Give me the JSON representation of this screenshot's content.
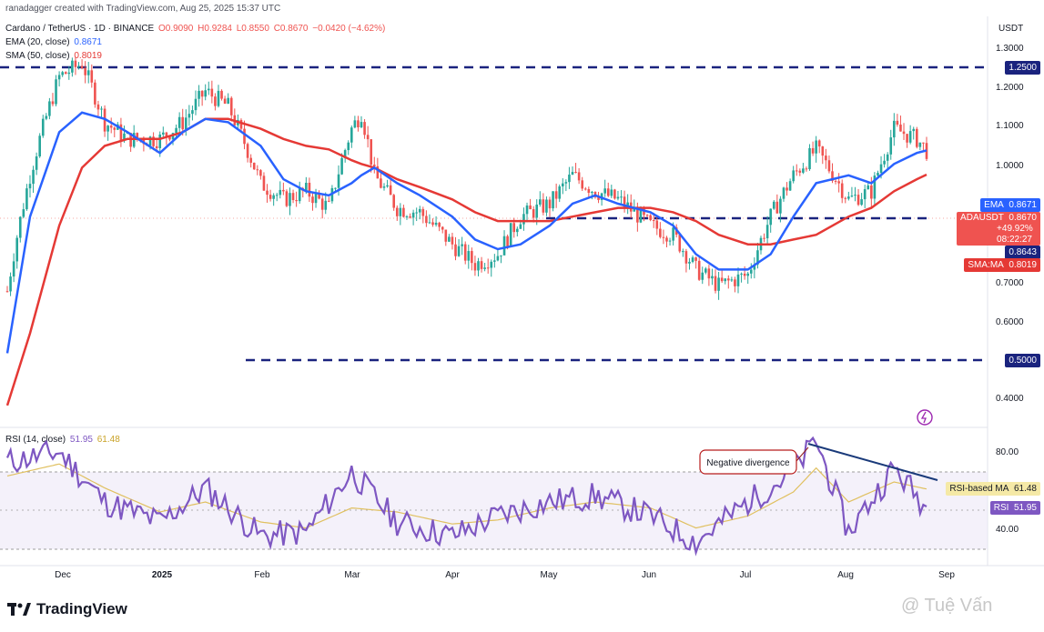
{
  "header": {
    "credit": "ranadagger created with TradingView.com, Aug 25, 2025 15:37 UTC",
    "symbol": "Cardano / TetherUS · 1D · BINANCE",
    "open": "O0.9090",
    "high": "H0.9284",
    "low": "L0.8550",
    "close": "C0.8670",
    "change": "−0.0420 (−4.62%)",
    "ema_label": "EMA (20, close)",
    "ema_value": "0.8671",
    "sma_label": "SMA (50, close)",
    "sma_value": "0.8019",
    "rsi_label": "RSI (14, close)",
    "rsi_value": "51.95",
    "rsi_ma_value": "61.48"
  },
  "axis": {
    "unit": "USDT",
    "price_ticks": [
      "1.3000",
      "1.2000",
      "1.1000",
      "1.0000",
      "0.7000",
      "0.6000",
      "0.4000"
    ],
    "rsi_ticks": [
      "80.00",
      "40.00"
    ],
    "time_ticks": [
      "Dec",
      "2025",
      "Feb",
      "Mar",
      "Apr",
      "May",
      "Jun",
      "Jul",
      "Aug",
      "Sep"
    ]
  },
  "tags": {
    "level_125": "1.2500",
    "ema": "EMA",
    "ema_val": "0.8671",
    "symbol": "ADAUSDT",
    "symbol_val": "0.8670",
    "pct": "+49.92%",
    "countdown": "08:22:27",
    "level_0864": "0.8643",
    "sma": "SMA:MA",
    "sma_val": "0.8019",
    "level_050": "0.5000",
    "rsi_ma": "RSI-based MA",
    "rsi_ma_val": "61.48",
    "rsi": "RSI",
    "rsi_val": "51.95"
  },
  "annotation": "Negative divergence",
  "footer": {
    "logo": "TradingView",
    "watermark": "@ Tuệ Vấn"
  },
  "colors": {
    "up": "#26a69a",
    "down": "#ef5350",
    "ema": "#2962ff",
    "sma": "#e53935",
    "rsi": "#7e57c2",
    "rsi_ma": "#e0c060",
    "level": "#1a237e"
  },
  "chart_data": [
    {
      "type": "candlestick",
      "title": "Cardano / TetherUS · 1D · BINANCE",
      "ylabel": "USDT",
      "y_scale": "log",
      "ylim": [
        0.37,
        1.33
      ],
      "x": [
        "2024-11-15",
        "2024-11-22",
        "2024-12-01",
        "2024-12-08",
        "2024-12-15",
        "2024-12-22",
        "2025-01-01",
        "2025-01-08",
        "2025-01-15",
        "2025-01-22",
        "2025-02-01",
        "2025-02-08",
        "2025-02-15",
        "2025-02-22",
        "2025-03-01",
        "2025-03-04",
        "2025-03-08",
        "2025-03-15",
        "2025-03-22",
        "2025-04-01",
        "2025-04-08",
        "2025-04-15",
        "2025-04-22",
        "2025-05-01",
        "2025-05-08",
        "2025-05-15",
        "2025-05-22",
        "2025-06-01",
        "2025-06-08",
        "2025-06-15",
        "2025-06-22",
        "2025-07-01",
        "2025-07-08",
        "2025-07-15",
        "2025-07-22",
        "2025-08-01",
        "2025-08-08",
        "2025-08-15",
        "2025-08-22",
        "2025-08-25"
      ],
      "series": [
        {
          "name": "ADAUSDT",
          "values": [
            0.55,
            0.8,
            1.1,
            1.15,
            0.95,
            0.9,
            0.9,
            0.95,
            1.05,
            1.0,
            0.78,
            0.74,
            0.76,
            0.72,
            0.93,
            0.98,
            0.8,
            0.72,
            0.71,
            0.64,
            0.6,
            0.62,
            0.7,
            0.73,
            0.8,
            0.76,
            0.74,
            0.68,
            0.66,
            0.59,
            0.56,
            0.58,
            0.7,
            0.8,
            0.87,
            0.74,
            0.76,
            0.93,
            0.9,
            0.867
          ]
        },
        {
          "name": "EMA (20, close)",
          "values": [
            0.45,
            0.7,
            0.92,
            0.98,
            0.96,
            0.92,
            0.86,
            0.92,
            0.96,
            0.95,
            0.88,
            0.79,
            0.76,
            0.75,
            0.78,
            0.8,
            0.82,
            0.78,
            0.75,
            0.7,
            0.65,
            0.63,
            0.64,
            0.68,
            0.73,
            0.75,
            0.73,
            0.71,
            0.68,
            0.62,
            0.59,
            0.59,
            0.62,
            0.7,
            0.78,
            0.8,
            0.78,
            0.83,
            0.86,
            0.8671
          ]
        },
        {
          "name": "SMA (50, close)",
          "values": [
            0.38,
            0.48,
            0.68,
            0.82,
            0.88,
            0.9,
            0.9,
            0.92,
            0.96,
            0.96,
            0.93,
            0.9,
            0.88,
            0.87,
            0.84,
            0.83,
            0.82,
            0.79,
            0.77,
            0.74,
            0.71,
            0.69,
            0.69,
            0.69,
            0.7,
            0.71,
            0.72,
            0.72,
            0.71,
            0.69,
            0.66,
            0.64,
            0.64,
            0.65,
            0.66,
            0.7,
            0.72,
            0.76,
            0.79,
            0.8019
          ]
        }
      ],
      "levels": [
        1.25,
        0.8643,
        0.5
      ]
    },
    {
      "type": "line",
      "title": "RSI (14, close)",
      "ylim": [
        25,
        90
      ],
      "x": [
        "2024-11-15",
        "2024-12-01",
        "2024-12-15",
        "2025-01-01",
        "2025-01-15",
        "2025-02-01",
        "2025-02-15",
        "2025-03-01",
        "2025-03-15",
        "2025-04-01",
        "2025-04-15",
        "2025-05-01",
        "2025-05-15",
        "2025-06-01",
        "2025-06-15",
        "2025-07-01",
        "2025-07-15",
        "2025-07-22",
        "2025-08-01",
        "2025-08-15",
        "2025-08-25"
      ],
      "series": [
        {
          "name": "RSI",
          "values": [
            75,
            80,
            55,
            45,
            62,
            38,
            40,
            70,
            45,
            38,
            48,
            55,
            58,
            48,
            35,
            55,
            70,
            86,
            40,
            72,
            51.95
          ]
        },
        {
          "name": "RSI-based MA",
          "values": [
            68,
            74,
            62,
            50,
            55,
            45,
            42,
            52,
            50,
            44,
            46,
            52,
            55,
            52,
            42,
            48,
            60,
            72,
            55,
            65,
            61.48
          ]
        }
      ],
      "bands": [
        70,
        30
      ]
    }
  ]
}
